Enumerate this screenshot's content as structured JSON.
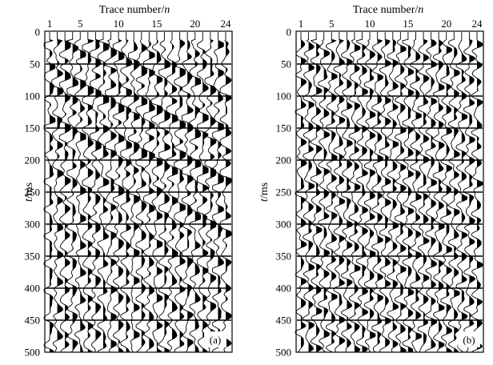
{
  "chart_data": [
    {
      "type": "seismic-wiggle",
      "panel_label": "(a)",
      "xlabel_main": "Trace number/",
      "xlabel_var": "n",
      "ylabel_var": "t",
      "ylabel_unit": "/ms",
      "x_ticks": [
        "1",
        "5",
        "10",
        "15",
        "20",
        "24"
      ],
      "y_ticks": [
        "0",
        "50",
        "100",
        "150",
        "200",
        "250",
        "300",
        "350",
        "400",
        "450",
        "500"
      ],
      "trace_range": [
        1,
        24
      ],
      "time_range_ms": [
        0,
        500
      ],
      "traces": 24,
      "grid_lines_ms": [
        50,
        100,
        150,
        200,
        250,
        300,
        350,
        400,
        450
      ],
      "description": ""
    },
    {
      "type": "seismic-wiggle",
      "panel_label": "(b)",
      "xlabel_main": "Trace number/",
      "xlabel_var": "n",
      "ylabel_var": "t",
      "ylabel_unit": "/ms",
      "x_ticks": [
        "1",
        "5",
        "10",
        "15",
        "20",
        "24"
      ],
      "y_ticks": [
        "0",
        "50",
        "100",
        "150",
        "200",
        "250",
        "300",
        "350",
        "400",
        "450",
        "500"
      ],
      "trace_range": [
        1,
        24
      ],
      "time_range_ms": [
        0,
        500
      ],
      "traces": 24,
      "grid_lines_ms": [
        50,
        100,
        150,
        200,
        250,
        300,
        350,
        400,
        450
      ],
      "description": ""
    }
  ]
}
